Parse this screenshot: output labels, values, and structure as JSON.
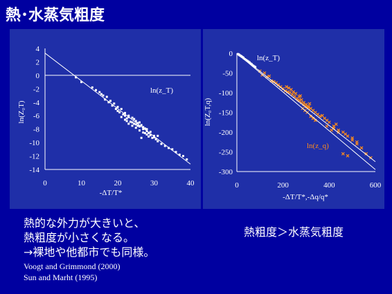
{
  "title": "熱･水蒸気粗度",
  "chart_data": [
    {
      "type": "scatter",
      "ylabel": "ln(Z₀T)",
      "xlabel": "-ΔT/T*",
      "xlim": [
        0,
        40
      ],
      "ylim": [
        -14,
        4
      ],
      "xticks": [
        "0",
        "10",
        "20",
        "30",
        "40"
      ],
      "yticks": [
        "4",
        "2",
        "0",
        "-2",
        "-4",
        "-6",
        "-8",
        "-10",
        "-12",
        "-14"
      ],
      "annotation": "ln(z_T)",
      "fit_line": [
        [
          0,
          3.3
        ],
        [
          40,
          -13.2
        ]
      ],
      "point_color": "#ffffff",
      "x": [
        8.5,
        10,
        13,
        14,
        15,
        15.5,
        16,
        16.5,
        17,
        17.5,
        18,
        18.5,
        19,
        19.5,
        20,
        20,
        20.5,
        21,
        21,
        21.5,
        22,
        22,
        22.5,
        23,
        23,
        23.5,
        24,
        24,
        24.5,
        25,
        25,
        25.5,
        26,
        26,
        26.5,
        27,
        27,
        27.5,
        28,
        28,
        28.5,
        29,
        29.5,
        30,
        30.5,
        31,
        32,
        33,
        34,
        35,
        36,
        37,
        38,
        39,
        25,
        24,
        26,
        27,
        28,
        23,
        22,
        29,
        30,
        31,
        26.5,
        27.5,
        24.5,
        28.5,
        22.5,
        25.5
      ],
      "y": [
        -0.3,
        -1.0,
        -1.8,
        -2.2,
        -2.5,
        -2.8,
        -3.0,
        -3.6,
        -3.2,
        -4.0,
        -3.8,
        -4.5,
        -4.2,
        -5.0,
        -4.7,
        -5.3,
        -5.5,
        -5.0,
        -6.2,
        -5.8,
        -6.0,
        -6.6,
        -6.8,
        -6.2,
        -7.2,
        -6.9,
        -7.0,
        -7.5,
        -6.5,
        -7.3,
        -7.8,
        -7.1,
        -7.6,
        -8.2,
        -7.4,
        -8.0,
        -8.5,
        -7.9,
        -8.3,
        -8.8,
        -8.6,
        -8.9,
        -9.3,
        -9.0,
        -9.5,
        -9.8,
        -10.2,
        -10.5,
        -10.8,
        -11.0,
        -11.4,
        -11.8,
        -12.0,
        -12.5,
        -6.8,
        -6.3,
        -7.0,
        -7.7,
        -8.0,
        -6.0,
        -5.6,
        -8.4,
        -9.2,
        -9.0,
        -9.3,
        -8.6,
        -7.2,
        -9.1,
        -6.4,
        -7.5
      ]
    },
    {
      "type": "scatter",
      "ylabel": "ln(Z₀T,q)",
      "xlabel": "-ΔT/T*,-Δq/q*",
      "xlim": [
        0,
        600
      ],
      "ylim": [
        -300,
        0
      ],
      "xticks": [
        "0",
        "200",
        "400",
        "600"
      ],
      "yticks": [
        "0",
        "-50",
        "-100",
        "-150",
        "-200",
        "-250",
        "-300"
      ],
      "annotations": [
        "ln(z_T)",
        "ln(z_q)"
      ],
      "fit_lines": [
        [
          [
            0,
            0
          ],
          [
            600,
            -275
          ]
        ],
        [
          [
            0,
            0
          ],
          [
            600,
            -295
          ]
        ]
      ],
      "series": [
        {
          "marker_color": "#ffffff",
          "x": [
            5,
            8,
            10,
            12,
            15,
            18,
            20,
            22,
            25,
            28,
            30,
            35,
            40,
            45,
            50,
            55,
            60,
            65,
            70,
            75,
            80
          ],
          "y": [
            -2,
            -3,
            -4,
            -5,
            -6,
            -7,
            -8,
            -9,
            -10,
            -11,
            -13,
            -15,
            -17,
            -19,
            -21,
            -23,
            -26,
            -28,
            -31,
            -33,
            -35
          ]
        },
        {
          "marker_color": "#ff8c1a",
          "x": [
            100,
            110,
            120,
            130,
            140,
            150,
            160,
            170,
            180,
            190,
            200,
            210,
            220,
            230,
            240,
            250,
            260,
            270,
            280,
            290,
            300,
            310,
            320,
            330,
            340,
            350,
            360,
            370,
            380,
            390,
            400,
            420,
            440,
            460,
            480,
            500,
            520,
            540,
            560,
            580,
            270,
            280,
            290,
            300,
            285,
            295,
            305,
            310,
            315,
            320,
            330,
            340,
            265,
            275,
            255,
            245,
            235,
            225,
            215,
            440,
            470,
            500,
            520,
            460,
            410,
            390,
            420,
            430,
            480
          ],
          "y": [
            -45,
            -55,
            -50,
            -60,
            -58,
            -70,
            -72,
            -75,
            -80,
            -85,
            -90,
            -95,
            -98,
            -100,
            -105,
            -110,
            -115,
            -120,
            -118,
            -125,
            -130,
            -135,
            -140,
            -145,
            -150,
            -155,
            -160,
            -158,
            -165,
            -170,
            -175,
            -185,
            -195,
            -200,
            -210,
            -220,
            -230,
            -240,
            -255,
            -265,
            -110,
            -125,
            -130,
            -135,
            -140,
            -145,
            -150,
            -138,
            -128,
            -160,
            -165,
            -170,
            -118,
            -108,
            -102,
            -98,
            -92,
            -88,
            -85,
            -200,
            -205,
            -215,
            -225,
            -255,
            -195,
            -185,
            -190,
            -180,
            -260
          ]
        }
      ]
    }
  ],
  "body": {
    "lines": [
      "熱的な外力が大きいと、",
      "熱粗度が小さくなる。",
      "→裸地や他都市でも同様。"
    ],
    "refs": [
      "Voogt and Grimmond (2000)",
      "Sun and Marht (1995)"
    ]
  },
  "conclusion": "熱粗度＞水蒸気粗度"
}
